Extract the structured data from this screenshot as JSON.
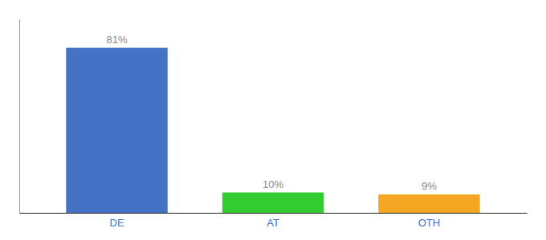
{
  "chart_data": {
    "type": "bar",
    "categories": [
      "DE",
      "AT",
      "OTH"
    ],
    "values": [
      81,
      10,
      9
    ],
    "value_labels": [
      "81%",
      "10%",
      "9%"
    ],
    "colors": [
      "#4472c4",
      "#33cc33",
      "#f5a623"
    ],
    "ylim": [
      0,
      95
    ],
    "data_labels": true,
    "tick_labels": "x"
  }
}
